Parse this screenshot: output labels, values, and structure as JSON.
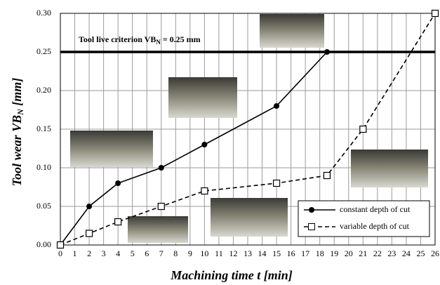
{
  "chart_data": {
    "type": "line",
    "annotation": {
      "text": "Tool live criterion VB",
      "subscript": "N",
      "suffix": " = 0.25 mm",
      "y": 0.25
    },
    "x_label": "Machining time t [min]",
    "y_label": {
      "text": "Tool wear VB",
      "subscript": "N",
      "suffix": " [mm]"
    },
    "series": [
      {
        "name": "constant depth of cut",
        "color": "#000000",
        "marker": "filled-circle",
        "dash": false,
        "x": [
          0,
          2,
          4,
          7,
          10,
          15,
          18.5
        ],
        "values": [
          0,
          0.05,
          0.08,
          0.1,
          0.13,
          0.18,
          0.25
        ]
      },
      {
        "name": "variable depth of cut",
        "color": "#000000",
        "marker": "open-square",
        "dash": true,
        "x": [
          0,
          2,
          4,
          7,
          10,
          15,
          18.5,
          21,
          26
        ],
        "values": [
          0,
          0.015,
          0.03,
          0.05,
          0.07,
          0.08,
          0.09,
          0.15,
          0.3
        ]
      }
    ],
    "xlim": [
      0,
      26
    ],
    "xticks": [
      0,
      1,
      2,
      3,
      4,
      5,
      6,
      7,
      8,
      9,
      10,
      11,
      12,
      13,
      14,
      15,
      16,
      17,
      18,
      19,
      20,
      21,
      22,
      23,
      24,
      25,
      26
    ],
    "ylim": [
      0,
      0.3
    ],
    "yticks": [
      {
        "value": 0,
        "label": "0.00"
      },
      0.05,
      {
        "value": 0.1,
        "label": "0.10"
      },
      0.15,
      {
        "value": 0.2,
        "label": "0.20"
      },
      0.25,
      {
        "value": 0.3,
        "label": "0.30"
      }
    ],
    "grid": true,
    "legend": "lower right"
  }
}
